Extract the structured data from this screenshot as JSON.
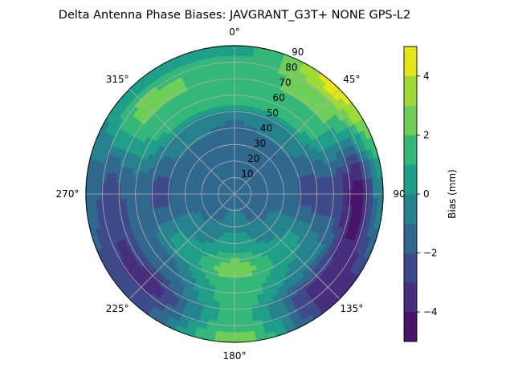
{
  "chart_data": {
    "type": "heatmap",
    "subtype": "polar-filled-contour",
    "title": "Delta Antenna Phase Biases: JAVGRANT_G3T+   NONE GPS-L2",
    "angular_axis": {
      "direction": "clockwise",
      "zero_location": "top",
      "tick_labels": [
        "0°",
        "45°",
        "90°",
        "135°",
        "180°",
        "225°",
        "270°",
        "315°"
      ],
      "tick_values": [
        0,
        45,
        90,
        135,
        180,
        225,
        270,
        315
      ]
    },
    "radial_axis": {
      "range": [
        0,
        90
      ],
      "tick_labels": [
        "10",
        "20",
        "30",
        "40",
        "50",
        "60",
        "70",
        "80",
        "90"
      ],
      "tick_values": [
        10,
        20,
        30,
        40,
        50,
        60,
        70,
        80,
        90
      ]
    },
    "grid": true,
    "colorbar": {
      "label": "Bias (mm)",
      "range": [
        -5,
        5
      ],
      "levels": [
        -5,
        -4,
        -3,
        -2,
        -1,
        0,
        1,
        2,
        3,
        4,
        5
      ],
      "tick_values": [
        -4,
        -2,
        0,
        2,
        4
      ],
      "tick_labels": [
        "−4",
        "−2",
        "0",
        "2",
        "4"
      ],
      "colormap": "viridis",
      "colors": [
        "#481467",
        "#482f7e",
        "#3e4a89",
        "#31688e",
        "#26828e",
        "#1f9e89",
        "#35b779",
        "#6ece58",
        "#a0da39",
        "#e5e419"
      ]
    },
    "field_estimate": {
      "azimuth_deg": [
        0,
        45,
        90,
        135,
        180,
        225,
        270,
        315
      ],
      "zenith_deg": [
        0,
        15,
        30,
        45,
        60,
        75,
        90
      ],
      "bias_mm": [
        [
          -1.5,
          -1.5,
          -2.0,
          -1.0,
          2.0,
          1.5,
          0.5
        ],
        [
          -1.5,
          -1.5,
          -1.5,
          -0.5,
          1.5,
          2.5,
          4.5
        ],
        [
          -1.5,
          -1.5,
          -1.5,
          -2.5,
          -2.5,
          -4.5,
          0.0
        ],
        [
          -1.5,
          -1.5,
          -0.5,
          0.5,
          -0.5,
          -3.5,
          -3.5
        ],
        [
          -1.5,
          -0.5,
          0.5,
          2.5,
          1.5,
          1.5,
          2.5
        ],
        [
          -1.5,
          -1.5,
          -0.5,
          0.5,
          -1.5,
          -3.5,
          -2.5
        ],
        [
          -1.5,
          -1.5,
          -1.5,
          -2.5,
          -1.5,
          -2.5,
          -1.5
        ],
        [
          -1.5,
          -1.5,
          -1.5,
          -0.5,
          1.5,
          2.5,
          0.5
        ]
      ]
    }
  }
}
